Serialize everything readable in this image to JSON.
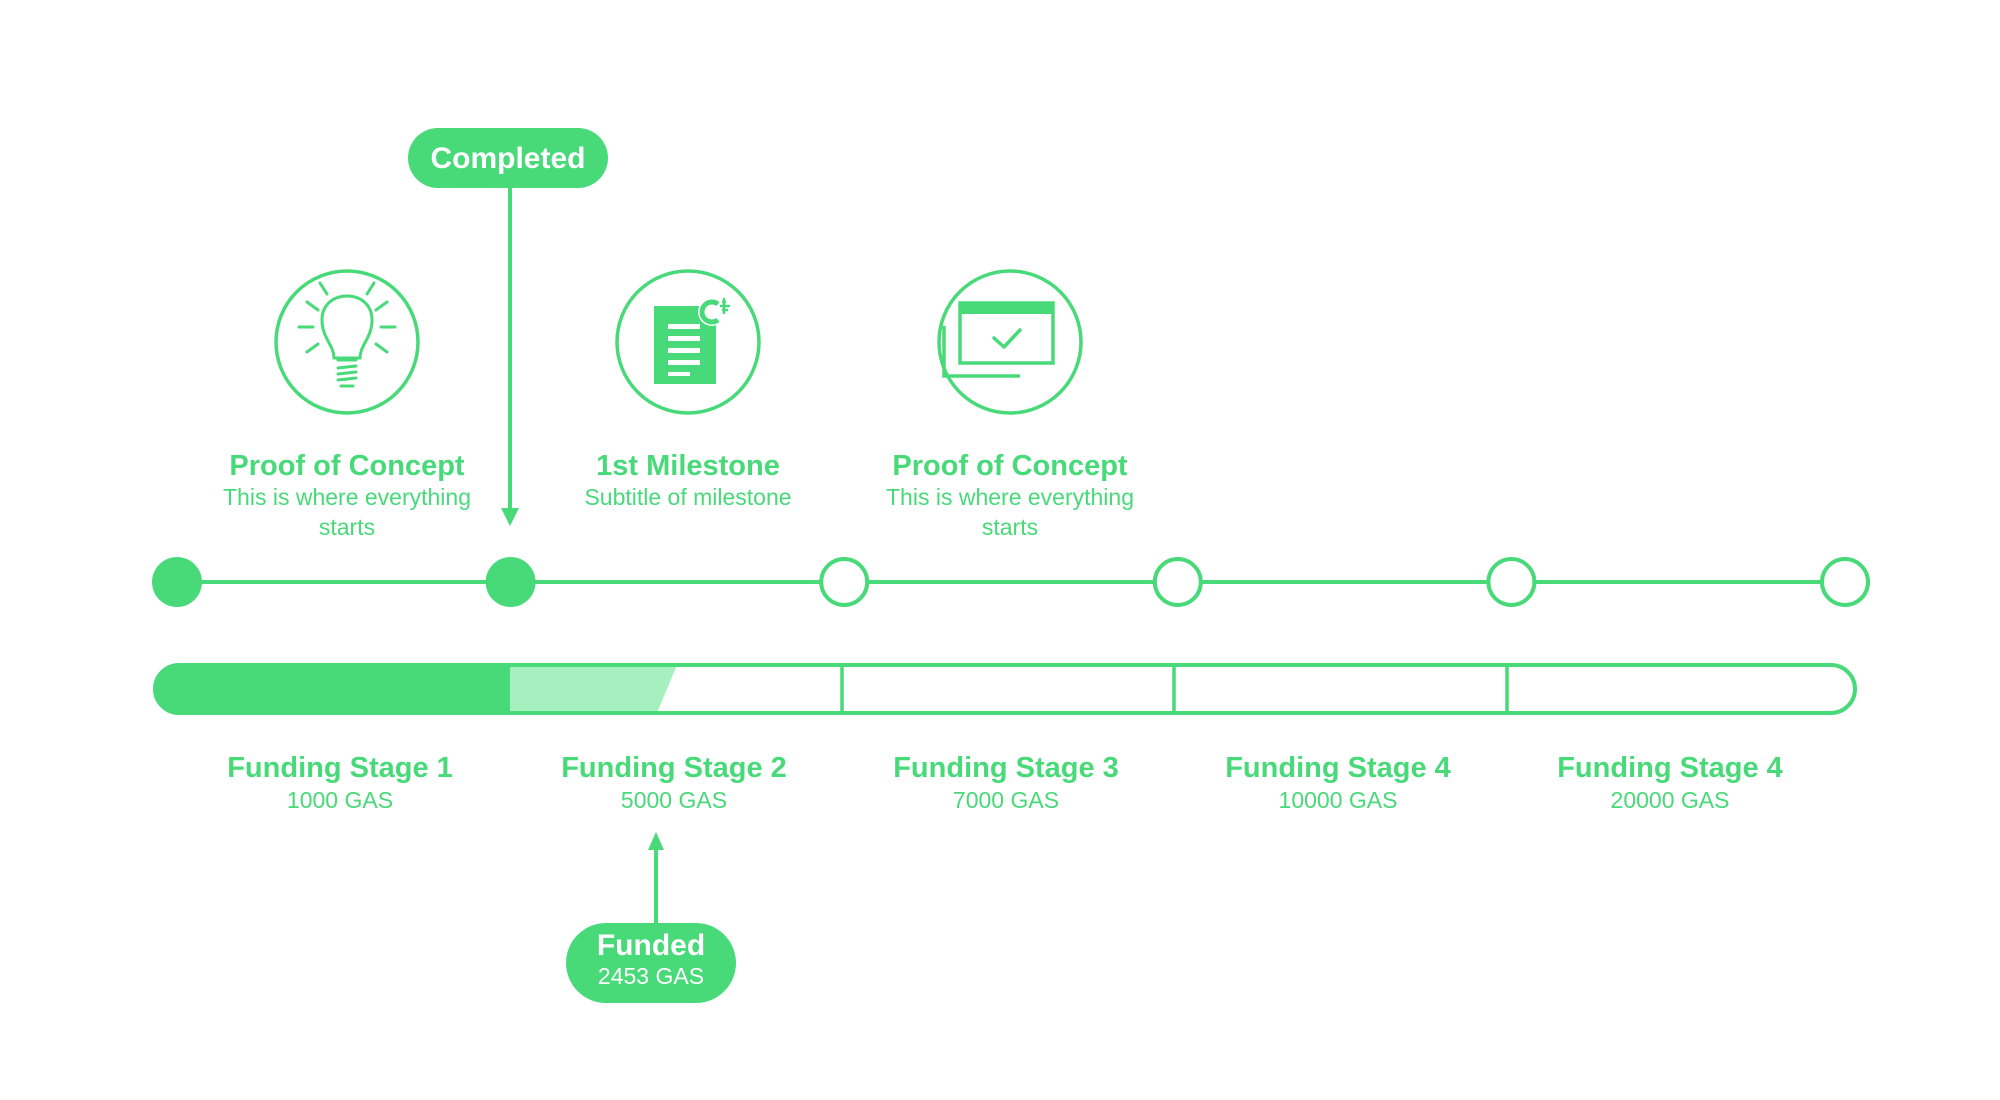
{
  "colors": {
    "accent": "#48d979",
    "accent_light": "#a6f0c0",
    "background": "#ffffff"
  },
  "completed_marker": {
    "label": "Completed"
  },
  "funded_marker": {
    "label": "Funded",
    "amount": "2453 GAS"
  },
  "milestones": [
    {
      "icon": "lightbulb-icon",
      "title": "Proof of Concept",
      "subtitle_line1": "This is where everything",
      "subtitle_line2": "starts"
    },
    {
      "icon": "code-document-icon",
      "title": "1st Milestone",
      "subtitle_line1": "Subtitle of milestone",
      "subtitle_line2": ""
    },
    {
      "icon": "browser-check-icon",
      "title": "Proof of Concept",
      "subtitle_line1": "This is where everything",
      "subtitle_line2": "starts"
    }
  ],
  "timeline_nodes": [
    {
      "state": "completed"
    },
    {
      "state": "completed"
    },
    {
      "state": "pending"
    },
    {
      "state": "pending"
    },
    {
      "state": "pending"
    },
    {
      "state": "pending"
    }
  ],
  "funding": {
    "stages_complete": 1,
    "stage2_progress_fraction": 0.49,
    "stages": [
      {
        "title": "Funding Stage 1",
        "amount": "1000 GAS"
      },
      {
        "title": "Funding Stage 2",
        "amount": "5000 GAS"
      },
      {
        "title": "Funding Stage 3",
        "amount": "7000 GAS"
      },
      {
        "title": "Funding Stage 4",
        "amount": "10000 GAS"
      },
      {
        "title": "Funding Stage 4",
        "amount": "20000 GAS"
      }
    ]
  }
}
